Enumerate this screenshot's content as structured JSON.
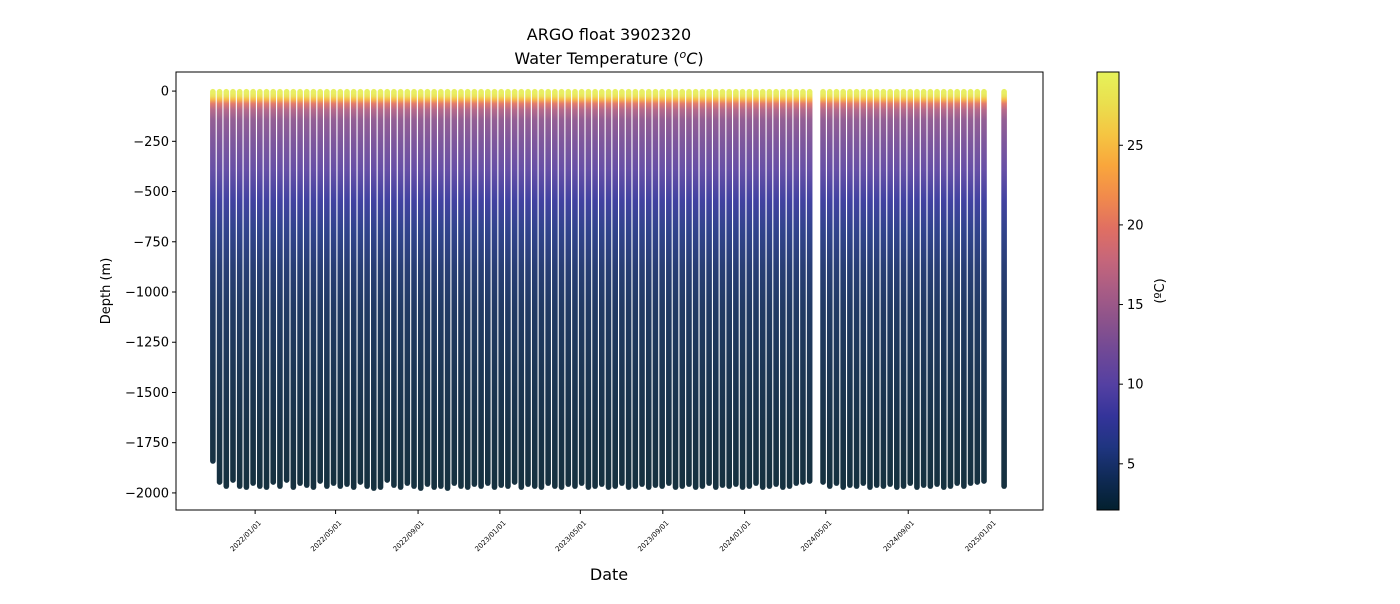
{
  "chart_data": {
    "type": "scatter",
    "title": "ARGO float 3902320",
    "subtitle_prefix": "Water Temperature (",
    "unit_sup": "o",
    "unit_main": "C",
    "subtitle_suffix": ")",
    "xlabel": "Date",
    "ylabel": "Depth (m)",
    "colorbar_label": "(ºC)",
    "colorbar_label_open": "(",
    "colorbar_label_close": ")",
    "xlim": [
      "2021-09-05",
      "2025-03-21"
    ],
    "ylim": [
      -2085,
      95
    ],
    "clim": [
      2.1,
      29.6
    ],
    "grid": false,
    "xticks": [
      "2022/01/01",
      "2022/05/01",
      "2022/09/01",
      "2023/01/01",
      "2023/05/01",
      "2023/09/01",
      "2024/01/01",
      "2024/05/01",
      "2024/09/01",
      "2025/01/01"
    ],
    "yticks": [
      0,
      -250,
      -500,
      -750,
      -1000,
      -1250,
      -1500,
      -1750,
      -2000
    ],
    "ytick_labels": [
      "0",
      "−250",
      "−500",
      "−750",
      "−1000",
      "−1250",
      "−1500",
      "−1750",
      "−2000"
    ],
    "cbar_ticks": [
      5,
      10,
      15,
      20,
      25
    ],
    "cbar_tick_labels": [
      "5",
      "10",
      "15",
      "20",
      "25"
    ],
    "colormap": [
      "#03202e",
      "#0f2a55",
      "#1f3580",
      "#34349a",
      "#5440a2",
      "#6e4897",
      "#8a528c",
      "#a85c85",
      "#c6667a",
      "#e06f62",
      "#f18a4c",
      "#f9a63c",
      "#f5c542",
      "#eadf4e",
      "#e6f25a"
    ],
    "profiles": {
      "first_date": "2021-10-30",
      "cycle_days": 10,
      "missing_cycles": [
        90,
        116,
        117
      ],
      "max_depth": [
        1850,
        1955,
        1975,
        1945,
        1975,
        1980,
        1960,
        1975,
        1980,
        1955,
        1975,
        1945,
        1980,
        1960,
        1970,
        1980,
        1950,
        1975,
        1960,
        1975,
        1965,
        1980,
        1955,
        1975,
        1985,
        1980,
        1945,
        1970,
        1980,
        1960,
        1975,
        1985,
        1965,
        1980,
        1975,
        1985,
        1960,
        1975,
        1980,
        1965,
        1975,
        1960,
        1980,
        1970,
        1975,
        1955,
        1980,
        1965,
        1975,
        1980,
        1960,
        1975,
        1980,
        1965,
        1975,
        1960,
        1980,
        1975,
        1965,
        1980,
        1975,
        1960,
        1980,
        1975,
        1965,
        1980,
        1970,
        1975,
        1960,
        1980,
        1975,
        1965,
        1980,
        1975,
        1960,
        1980,
        1970,
        1975,
        1965,
        1980,
        1975,
        1960,
        1980,
        1975,
        1965,
        1980,
        1975,
        1960,
        1955,
        1950,
        0,
        1955,
        1975,
        1960,
        1980,
        1970,
        1975,
        1960,
        1980,
        1970,
        1975,
        1965,
        1980,
        1975,
        1960,
        1980,
        1970,
        1975,
        1965,
        1980,
        1975,
        1960,
        1975,
        1960,
        1955,
        1950,
        0,
        0,
        1975
      ],
      "temperature_profile": {
        "depth": [
          0,
          20,
          35,
          50,
          70,
          100,
          150,
          250,
          400,
          550,
          700,
          900,
          1100,
          1400,
          1700,
          2000
        ],
        "temp": [
          29.4,
          29.0,
          27.5,
          24.5,
          20.0,
          16.5,
          14.0,
          12.5,
          10.5,
          8.0,
          6.3,
          5.0,
          4.2,
          3.4,
          2.7,
          2.2
        ]
      }
    }
  }
}
